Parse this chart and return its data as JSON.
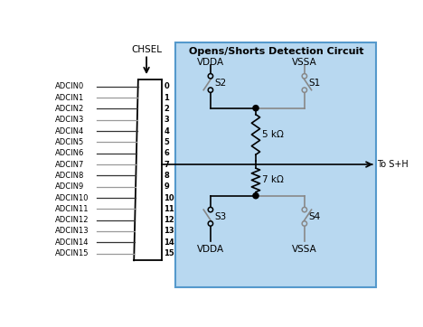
{
  "title": "Opens/Shorts Detection Circuit",
  "adcin_labels": [
    "ADCIN0",
    "ADCIN1",
    "ADCIN2",
    "ADCIN3",
    "ADCIN4",
    "ADCIN5",
    "ADCIN6",
    "ADCIN7",
    "ADCIN8",
    "ADCIN9",
    "ADCIN10",
    "ADCIN11",
    "ADCIN12",
    "ADCIN13",
    "ADCIN14",
    "ADCIN15"
  ],
  "channel_numbers": [
    "0",
    "1",
    "2",
    "3",
    "4",
    "5",
    "6",
    "7",
    "8",
    "9",
    "10",
    "11",
    "12",
    "13",
    "14",
    "15"
  ],
  "chsel_label": "CHSEL",
  "vdda_top_label": "VDDA",
  "vssa_top_label": "VSSA",
  "vdda_bot_label": "VDDA",
  "vssa_bot_label": "VSSA",
  "s1_label": "S1",
  "s2_label": "S2",
  "s3_label": "S3",
  "s4_label": "S4",
  "r1_label": "5 kΩ",
  "r2_label": "7 kΩ",
  "to_sh_label": "To S+H",
  "line_color": "#000000",
  "dark_gray": "#555555",
  "light_blue_fill": "#b8d8f0",
  "box_edge_color": "#5599cc",
  "mux_line_color": "#666666",
  "adcin_line_color": "#999999",
  "switch_line_color": "#888888",
  "vssa_line_color": "#888888"
}
